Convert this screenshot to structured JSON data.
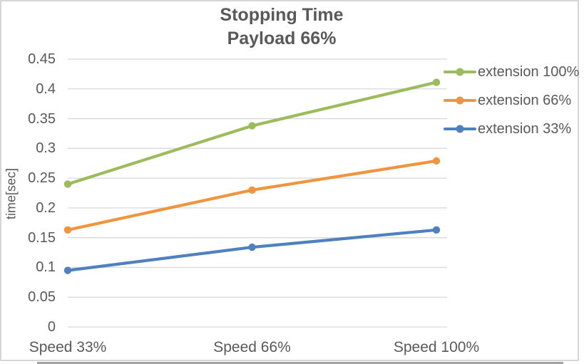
{
  "chart_data": {
    "type": "line",
    "title": "Stopping Time",
    "subtitle": "Payload 66%",
    "ylabel": "time[sec]",
    "xlabel": "",
    "categories": [
      "Speed 33%",
      "Speed 66%",
      "Speed 100%"
    ],
    "series": [
      {
        "name": "extension 100%",
        "color": "#9cbb5c",
        "values": [
          0.24,
          0.338,
          0.411
        ]
      },
      {
        "name": "extension 66%",
        "color": "#f0953f",
        "values": [
          0.163,
          0.23,
          0.279
        ]
      },
      {
        "name": "extension 33%",
        "color": "#4e81bd",
        "values": [
          0.095,
          0.134,
          0.163
        ]
      }
    ],
    "ylim": [
      0,
      0.45
    ],
    "yticks": [
      0,
      0.05,
      0.1,
      0.15,
      0.2,
      0.25,
      0.3,
      0.35,
      0.4,
      0.45
    ],
    "grid": true,
    "marker": "circle",
    "legend_position": "right",
    "text_color": "#595959",
    "gridline_color": "#d9d9d9",
    "border_color": "#d6d6d6",
    "bottom_strip_color": "#a3a3a3"
  }
}
